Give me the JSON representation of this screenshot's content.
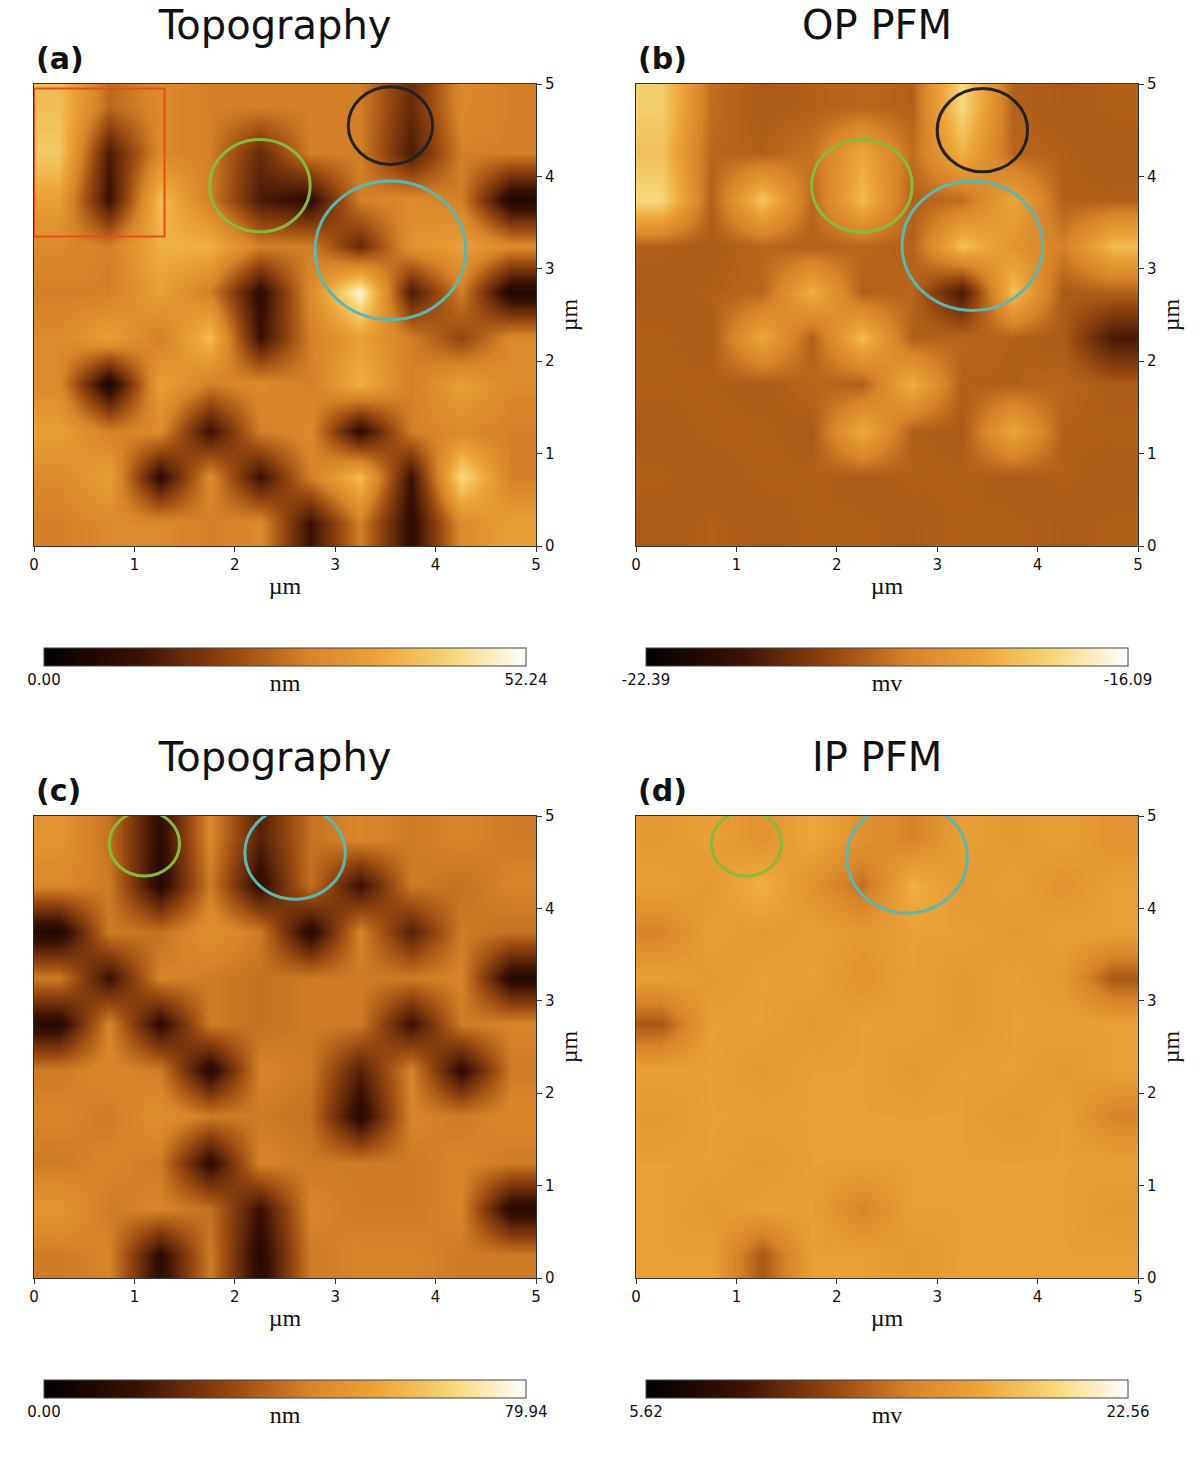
{
  "chart_data": [
    {
      "type": "heatmap",
      "title": "Topography",
      "panel_label": "(a)",
      "x_label": "µm",
      "y_label": "µm",
      "x": [
        0.25,
        0.75,
        1.25,
        1.75,
        2.25,
        2.75,
        3.25,
        3.75,
        4.25,
        4.75
      ],
      "y": [
        0.25,
        0.75,
        1.25,
        1.75,
        2.25,
        2.75,
        3.25,
        3.75,
        4.25,
        4.75
      ],
      "z": [
        [
          28,
          30,
          30,
          28,
          30,
          10,
          28,
          8,
          30,
          35
        ],
        [
          30,
          35,
          8,
          30,
          10,
          28,
          40,
          10,
          45,
          28
        ],
        [
          35,
          28,
          30,
          10,
          28,
          30,
          8,
          28,
          30,
          28
        ],
        [
          30,
          5,
          35,
          28,
          30,
          28,
          38,
          28,
          35,
          30
        ],
        [
          30,
          35,
          28,
          40,
          10,
          28,
          35,
          28,
          20,
          30
        ],
        [
          28,
          28,
          35,
          28,
          8,
          30,
          50,
          12,
          28,
          5
        ],
        [
          30,
          28,
          38,
          38,
          28,
          28,
          15,
          32,
          35,
          30
        ],
        [
          35,
          10,
          40,
          28,
          12,
          8,
          28,
          30,
          28,
          5
        ],
        [
          42,
          12,
          30,
          28,
          15,
          28,
          28,
          12,
          28,
          28
        ],
        [
          40,
          25,
          30,
          28,
          28,
          28,
          28,
          15,
          30,
          28
        ]
      ],
      "xlim": [
        0,
        5
      ],
      "ylim": [
        0,
        5
      ],
      "xticks": [
        0,
        1,
        2,
        3,
        4,
        5
      ],
      "yticks": [
        0,
        1,
        2,
        3,
        4,
        5
      ],
      "colorbar": {
        "label": "nm",
        "range": [
          0,
          52.24
        ],
        "ticks": [
          {
            "value": 0,
            "label": "0.00"
          },
          {
            "value": 52.24,
            "label": "52.24"
          }
        ]
      },
      "circles": [
        {
          "x": 3.55,
          "y": 4.55,
          "r": 0.42,
          "color": "#222222"
        },
        {
          "x": 2.25,
          "y": 3.9,
          "r": 0.5,
          "color": "#8ab83c"
        },
        {
          "x": 3.55,
          "y": 3.2,
          "r": 0.75,
          "color": "#5bb8b0"
        }
      ],
      "rectangles": [
        {
          "x0": 0.0,
          "y0": 3.35,
          "x1": 1.3,
          "y1": 4.95,
          "color": "#e0501a"
        }
      ]
    },
    {
      "type": "heatmap",
      "title": "OP PFM",
      "panel_label": "(b)",
      "x_label": "µm",
      "y_label": "µm",
      "x": [
        0.25,
        0.75,
        1.25,
        1.75,
        2.25,
        2.75,
        3.25,
        3.75,
        4.25,
        4.75
      ],
      "y": [
        0.25,
        0.75,
        1.25,
        1.75,
        2.25,
        2.75,
        3.25,
        3.75,
        4.25,
        4.75
      ],
      "z": [
        [
          -19.6,
          -19.5,
          -19.6,
          -19.5,
          -19.5,
          -19.6,
          -19.5,
          -19.5,
          -19.6,
          -19.5
        ],
        [
          -19.5,
          -19.6,
          -19.5,
          -19.5,
          -19.6,
          -19.5,
          -19.5,
          -19.6,
          -19.5,
          -19.6
        ],
        [
          -19.6,
          -19.5,
          -19.5,
          -19.6,
          -17.9,
          -19.5,
          -19.6,
          -18.0,
          -19.5,
          -19.5
        ],
        [
          -19.5,
          -19.5,
          -19.6,
          -19.4,
          -19.5,
          -17.8,
          -19.5,
          -19.5,
          -19.4,
          -19.6
        ],
        [
          -19.5,
          -19.6,
          -18.0,
          -19.5,
          -17.6,
          -19.5,
          -19.4,
          -19.5,
          -19.6,
          -21.0
        ],
        [
          -19.6,
          -19.5,
          -19.4,
          -17.8,
          -19.5,
          -19.4,
          -21.0,
          -17.5,
          -19.6,
          -19.5
        ],
        [
          -19.5,
          -19.6,
          -19.4,
          -19.5,
          -19.4,
          -19.5,
          -17.5,
          -18.5,
          -19.0,
          -17.6
        ],
        [
          -17.0,
          -19.5,
          -17.4,
          -19.4,
          -17.6,
          -19.5,
          -19.3,
          -18.0,
          -19.5,
          -19.5
        ],
        [
          -17.5,
          -19.4,
          -19.5,
          -19.2,
          -18.0,
          -19.3,
          -17.8,
          -19.4,
          -19.5,
          -19.6
        ],
        [
          -17.2,
          -19.3,
          -19.6,
          -19.5,
          -19.4,
          -19.5,
          -17.0,
          -19.5,
          -19.6,
          -19.5
        ]
      ],
      "xlim": [
        0,
        5
      ],
      "ylim": [
        0,
        5
      ],
      "xticks": [
        0,
        1,
        2,
        3,
        4,
        5
      ],
      "yticks": [
        0,
        1,
        2,
        3,
        4,
        5
      ],
      "colorbar": {
        "label": "mv",
        "range": [
          -22.39,
          -16.09
        ],
        "ticks": [
          {
            "value": -22.39,
            "label": "-22.39"
          },
          {
            "value": -16.09,
            "label": "-16.09"
          }
        ]
      },
      "circles": [
        {
          "x": 3.45,
          "y": 4.5,
          "r": 0.45,
          "color": "#222222"
        },
        {
          "x": 2.25,
          "y": 3.9,
          "r": 0.5,
          "color": "#8ab83c"
        },
        {
          "x": 3.35,
          "y": 3.25,
          "r": 0.7,
          "color": "#5bb8b0"
        }
      ],
      "rectangles": []
    },
    {
      "type": "heatmap",
      "title": "Topography",
      "panel_label": "(c)",
      "x_label": "µm",
      "y_label": "µm",
      "x": [
        0.25,
        0.75,
        1.25,
        1.75,
        2.25,
        2.75,
        3.25,
        3.75,
        4.25,
        4.75
      ],
      "y": [
        0.25,
        0.75,
        1.25,
        1.75,
        2.25,
        2.75,
        3.25,
        3.75,
        4.25,
        4.75
      ],
      "z": [
        [
          42,
          44,
          12,
          42,
          10,
          42,
          44,
          44,
          42,
          42
        ],
        [
          50,
          42,
          44,
          40,
          15,
          44,
          42,
          42,
          44,
          10
        ],
        [
          42,
          44,
          42,
          12,
          44,
          42,
          42,
          42,
          44,
          42
        ],
        [
          44,
          42,
          48,
          42,
          42,
          40,
          10,
          44,
          42,
          45
        ],
        [
          42,
          45,
          42,
          10,
          44,
          42,
          20,
          44,
          12,
          42
        ],
        [
          10,
          44,
          12,
          42,
          40,
          42,
          42,
          15,
          42,
          44
        ],
        [
          42,
          15,
          44,
          42,
          40,
          42,
          42,
          42,
          44,
          10
        ],
        [
          8,
          42,
          40,
          48,
          42,
          10,
          44,
          20,
          42,
          40
        ],
        [
          45,
          42,
          10,
          42,
          12,
          40,
          15,
          42,
          40,
          44
        ],
        [
          50,
          40,
          12,
          45,
          20,
          40,
          45,
          42,
          44,
          42
        ]
      ],
      "xlim": [
        0,
        5
      ],
      "ylim": [
        0,
        5
      ],
      "xticks": [
        0,
        1,
        2,
        3,
        4,
        5
      ],
      "yticks": [
        0,
        1,
        2,
        3,
        4,
        5
      ],
      "colorbar": {
        "label": "nm",
        "range": [
          0,
          79.94
        ],
        "ticks": [
          {
            "value": 0,
            "label": "0.00"
          },
          {
            "value": 79.94,
            "label": "79.94"
          }
        ]
      },
      "circles": [
        {
          "x": 1.1,
          "y": 4.7,
          "r": 0.35,
          "color": "#8ab83c"
        },
        {
          "x": 2.6,
          "y": 4.6,
          "r": 0.5,
          "color": "#5bb8b0"
        }
      ],
      "rectangles": []
    },
    {
      "type": "heatmap",
      "title": "IP PFM",
      "panel_label": "(d)",
      "x_label": "µm",
      "y_label": "µm",
      "x": [
        0.25,
        0.75,
        1.25,
        1.75,
        2.25,
        2.75,
        3.25,
        3.75,
        4.25,
        4.75
      ],
      "y": [
        0.25,
        0.75,
        1.25,
        1.75,
        2.25,
        2.75,
        3.25,
        3.75,
        4.25,
        4.75
      ],
      "z": [
        [
          17,
          17,
          13,
          17,
          17,
          16.5,
          17,
          17,
          17,
          17
        ],
        [
          17,
          16.5,
          17,
          17,
          15,
          17,
          17,
          17,
          17,
          16.5
        ],
        [
          17,
          17,
          16.5,
          17,
          17,
          17,
          17,
          17,
          17,
          17
        ],
        [
          16.5,
          17,
          17,
          17,
          17,
          17,
          17,
          16.5,
          17,
          15
        ],
        [
          17,
          17,
          16.5,
          17,
          17,
          16.5,
          17,
          17,
          16.5,
          17
        ],
        [
          13,
          17,
          17,
          16.5,
          17,
          17,
          16.5,
          17,
          17,
          17
        ],
        [
          17,
          16.5,
          17,
          17,
          16,
          17,
          16.5,
          17,
          16.5,
          13
        ],
        [
          15,
          17,
          16.5,
          17,
          16.5,
          17,
          17,
          16.5,
          17,
          17
        ],
        [
          17,
          16.5,
          18,
          16,
          14,
          18,
          16.5,
          17,
          16,
          17
        ],
        [
          16.5,
          17,
          16,
          17.5,
          16,
          15,
          17,
          16.5,
          17,
          16
        ]
      ],
      "xlim": [
        0,
        5
      ],
      "ylim": [
        0,
        5
      ],
      "xticks": [
        0,
        1,
        2,
        3,
        4,
        5
      ],
      "yticks": [
        0,
        1,
        2,
        3,
        4,
        5
      ],
      "colorbar": {
        "label": "mv",
        "range": [
          5.62,
          22.56
        ],
        "ticks": [
          {
            "value": 5.62,
            "label": "5.62"
          },
          {
            "value": 22.56,
            "label": "22.56"
          }
        ]
      },
      "circles": [
        {
          "x": 1.1,
          "y": 4.7,
          "r": 0.35,
          "color": "#8ab83c"
        },
        {
          "x": 2.7,
          "y": 4.55,
          "r": 0.6,
          "color": "#5bb8b0"
        }
      ],
      "rectangles": []
    }
  ]
}
